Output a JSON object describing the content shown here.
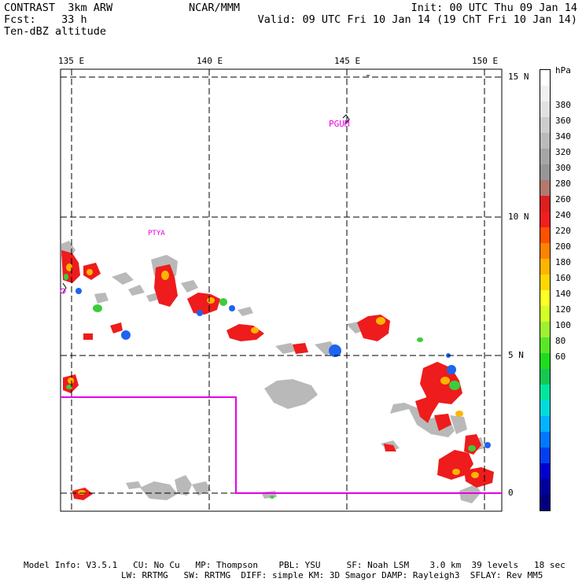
{
  "header": {
    "left_line1": "CONTRAST  3km ARW",
    "left_line2": "Fcst:    33 h",
    "left_line3": "Ten-dBZ altitude",
    "center": "NCAR/MMM",
    "init": "Init: 00 UTC Thu 09 Jan 14",
    "valid": "Valid: 09 UTC Fri 10 Jan 14 (19 ChT Fri 10 Jan 14)"
  },
  "map": {
    "lon_labels": [
      "135 E",
      "140 E",
      "145 E",
      "150 E"
    ],
    "lat_labels": [
      "15 N",
      "10 N",
      "5 N",
      "0"
    ],
    "station_labels": [
      "PGUM",
      "PTYA"
    ],
    "boundary_color": "#e600e6"
  },
  "colorbar": {
    "unit": "hPa",
    "levels": [
      "380",
      "360",
      "340",
      "320",
      "300",
      "280",
      "260",
      "240",
      "220",
      "200",
      "180",
      "160",
      "140",
      "120",
      "100",
      "80",
      "60"
    ],
    "colors": [
      "#ffffff",
      "#f0f0f0",
      "#e1e1e1",
      "#cdcdcd",
      "#bababa",
      "#a5a5a5",
      "#969696",
      "#b4786e",
      "#dc1e1e",
      "#f01e1e",
      "#ff5000",
      "#ff8200",
      "#ffb400",
      "#ffd700",
      "#ffff28",
      "#d2ff28",
      "#a0f032",
      "#5ae628",
      "#1edc1e",
      "#14c850",
      "#00e6a0",
      "#00dcdc",
      "#00b4ff",
      "#0078ff",
      "#0040f0",
      "#0000d2",
      "#0000a0",
      "#000080"
    ]
  },
  "footer": {
    "line1": "Model Info: V3.5.1   CU: No Cu   MP: Thompson    PBL: YSU     SF: Noah LSM    3.0 km  39 levels   18 sec",
    "line2": "LW: RRTMG   SW: RRTMG  DIFF: simple KM: 3D Smagor DAMP: Rayleigh3  SFLAY: Rev MM5"
  }
}
